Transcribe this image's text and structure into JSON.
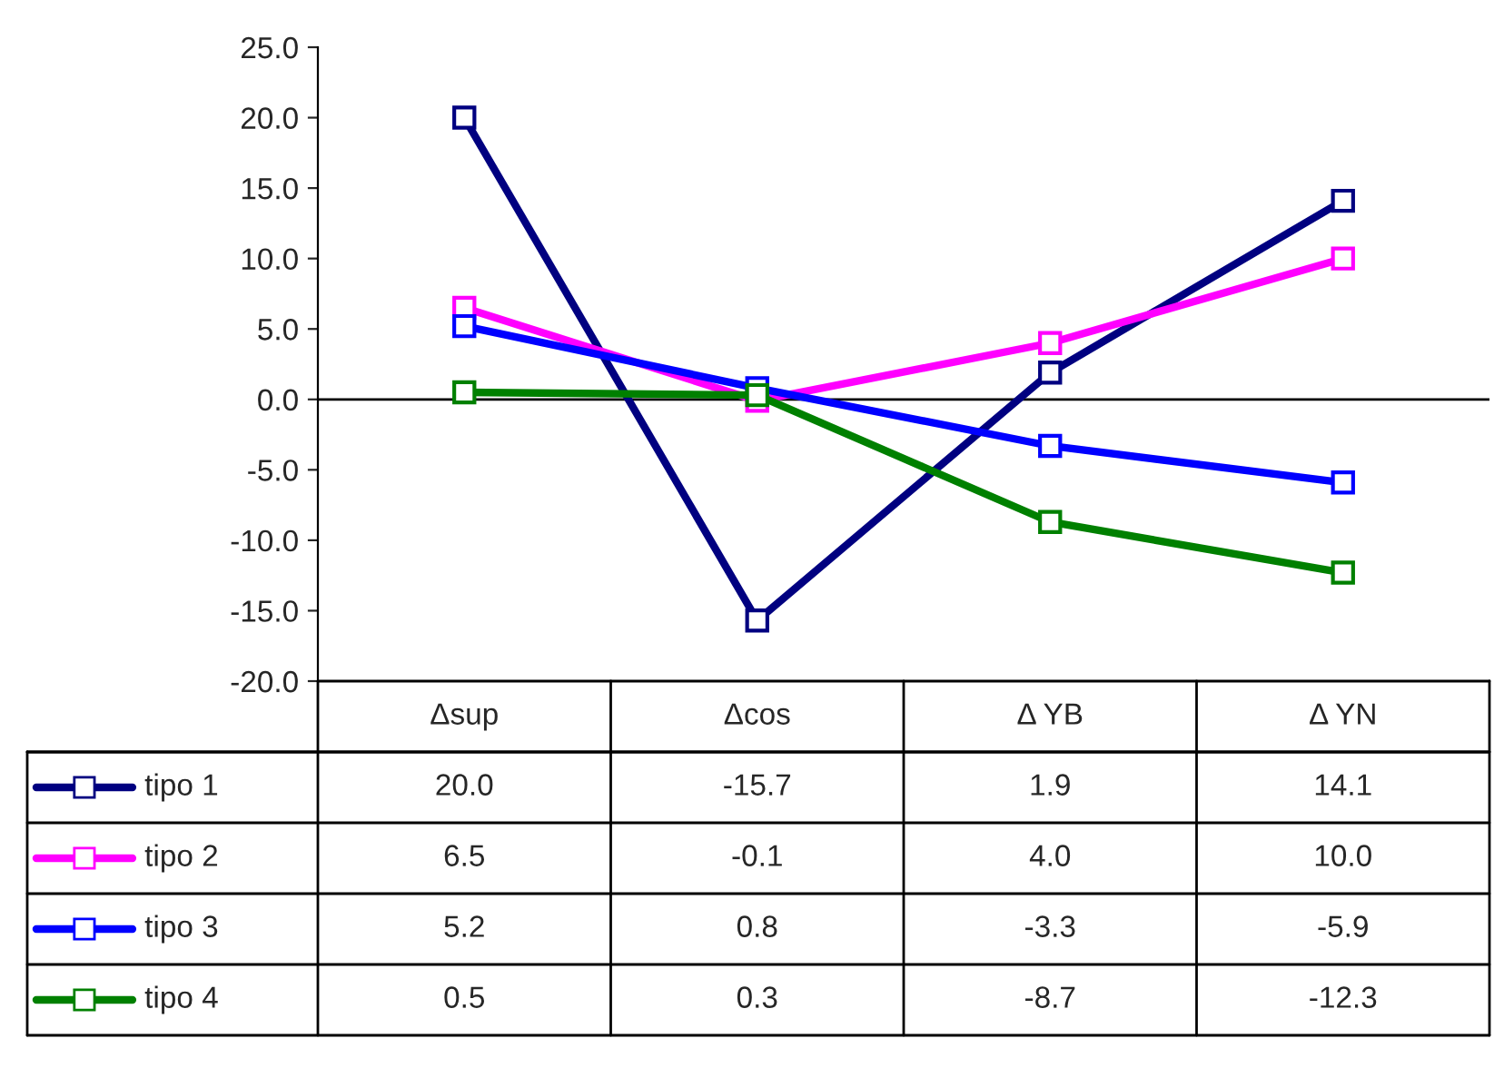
{
  "chart_data": {
    "type": "line",
    "categories": [
      "Δsup",
      "Δcos",
      "Δ YB",
      "Δ YN"
    ],
    "series": [
      {
        "name": "tipo 1",
        "color": "#000080",
        "values": [
          20.0,
          -15.7,
          1.9,
          14.1
        ],
        "value_labels": [
          "20.0",
          "-15.7",
          "1.9",
          "14.1"
        ]
      },
      {
        "name": "tipo 2",
        "color": "#ff00ff",
        "values": [
          6.5,
          -0.1,
          4.0,
          10.0
        ],
        "value_labels": [
          "6.5",
          "-0.1",
          "4.0",
          "10.0"
        ]
      },
      {
        "name": "tipo 3",
        "color": "#0000ff",
        "values": [
          5.2,
          0.8,
          -3.3,
          -5.9
        ],
        "value_labels": [
          "5.2",
          "0.8",
          "-3.3",
          "-5.9"
        ]
      },
      {
        "name": "tipo 4",
        "color": "#008000",
        "values": [
          0.5,
          0.3,
          -8.7,
          -12.3
        ],
        "value_labels": [
          "0.5",
          "0.3",
          "-8.7",
          "-12.3"
        ]
      }
    ],
    "ylim": [
      -20,
      25
    ],
    "yticks": [
      {
        "value": -20,
        "label": "-20.0"
      },
      {
        "value": -15,
        "label": "-15.0"
      },
      {
        "value": -10,
        "label": "-10.0"
      },
      {
        "value": -5,
        "label": "-5.0"
      },
      {
        "value": 0,
        "label": "0.0"
      },
      {
        "value": 5,
        "label": "5.0"
      },
      {
        "value": 10,
        "label": "10.0"
      },
      {
        "value": 15,
        "label": "15.0"
      },
      {
        "value": 20,
        "label": "20.0"
      },
      {
        "value": 25,
        "label": "25.0"
      }
    ],
    "ref_lines": [
      {
        "axis": "y",
        "value": 0,
        "color": "#000000"
      }
    ],
    "marker": "square",
    "line_style": "solid",
    "grid": false,
    "legend": "bottom left"
  }
}
